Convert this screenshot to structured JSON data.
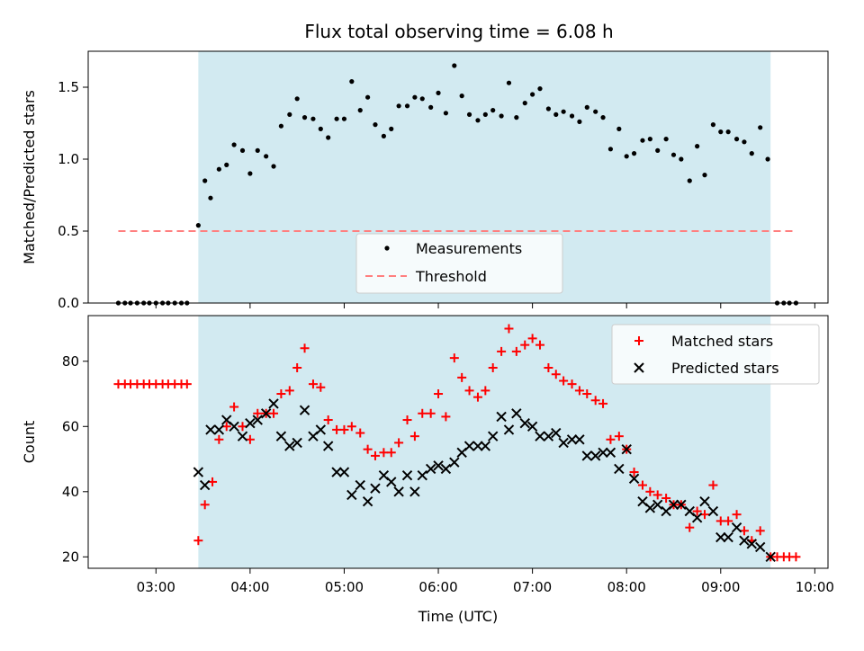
{
  "chart_data": {
    "title": "Flux total observing time = 6.08 h",
    "xlabel": "Time (UTC)",
    "x_ticks": [
      "03:00",
      "04:00",
      "05:00",
      "06:00",
      "07:00",
      "08:00",
      "09:00",
      "10:00"
    ],
    "x_tick_hours": [
      3,
      4,
      5,
      6,
      7,
      8,
      9,
      10
    ],
    "xlim_hours": [
      2.28,
      10.14
    ],
    "observing_window_hours": [
      3.45,
      9.53
    ],
    "observing_window_color": "#add8e6",
    "panels": [
      {
        "type": "scatter",
        "ylabel": "Matched/Predicted stars",
        "ylim": [
          0,
          1.75
        ],
        "y_ticks": [
          0.0,
          0.5,
          1.0,
          1.5
        ],
        "legend_position": "lower-center",
        "series": [
          {
            "name": "Measurements",
            "marker": "dot",
            "color": "#000000",
            "x": [
              2.6,
              2.67,
              2.73,
              2.8,
              2.87,
              2.93,
              3.0,
              3.07,
              3.13,
              3.2,
              3.27,
              3.33,
              3.45,
              3.52,
              3.58,
              3.67,
              3.75,
              3.83,
              3.92,
              4.0,
              4.08,
              4.17,
              4.25,
              4.33,
              4.42,
              4.5,
              4.58,
              4.67,
              4.75,
              4.83,
              4.92,
              5.0,
              5.08,
              5.17,
              5.25,
              5.33,
              5.42,
              5.5,
              5.58,
              5.67,
              5.75,
              5.83,
              5.92,
              6.0,
              6.08,
              6.17,
              6.25,
              6.33,
              6.42,
              6.5,
              6.58,
              6.67,
              6.75,
              6.83,
              6.92,
              7.0,
              7.08,
              7.17,
              7.25,
              7.33,
              7.42,
              7.5,
              7.58,
              7.67,
              7.75,
              7.83,
              7.92,
              8.0,
              8.08,
              8.17,
              8.25,
              8.33,
              8.42,
              8.5,
              8.58,
              8.67,
              8.75,
              8.83,
              8.92,
              9.0,
              9.08,
              9.17,
              9.25,
              9.33,
              9.42,
              9.5,
              9.6,
              9.67,
              9.73,
              9.8
            ],
            "y": [
              0,
              0,
              0,
              0,
              0,
              0,
              0,
              0,
              0,
              0,
              0,
              0,
              0.54,
              0.85,
              0.73,
              0.93,
              0.96,
              1.1,
              1.06,
              0.9,
              1.06,
              1.02,
              0.95,
              1.23,
              1.31,
              1.42,
              1.29,
              1.28,
              1.21,
              1.15,
              1.28,
              1.28,
              1.54,
              1.34,
              1.43,
              1.24,
              1.16,
              1.21,
              1.37,
              1.37,
              1.43,
              1.42,
              1.36,
              1.46,
              1.32,
              1.65,
              1.44,
              1.31,
              1.27,
              1.31,
              1.34,
              1.3,
              1.53,
              1.29,
              1.39,
              1.45,
              1.49,
              1.35,
              1.31,
              1.33,
              1.3,
              1.26,
              1.36,
              1.33,
              1.29,
              1.07,
              1.21,
              1.02,
              1.04,
              1.13,
              1.14,
              1.06,
              1.14,
              1.03,
              1.0,
              0.85,
              1.09,
              0.89,
              1.24,
              1.19,
              1.19,
              1.14,
              1.12,
              1.04,
              1.22,
              1.0,
              0,
              0,
              0,
              0
            ]
          },
          {
            "name": "Threshold",
            "marker": "dashed-line",
            "color": "#ff7f7f",
            "x": [
              2.6,
              9.8
            ],
            "y": [
              0.5,
              0.5
            ]
          }
        ]
      },
      {
        "type": "scatter",
        "ylabel": "Count",
        "ylim": [
          16.5,
          94
        ],
        "y_ticks": [
          20,
          40,
          60,
          80
        ],
        "legend_position": "upper-right",
        "series": [
          {
            "name": "Matched stars",
            "marker": "plus",
            "color": "#ff0000",
            "x": [
              2.6,
              2.67,
              2.73,
              2.8,
              2.87,
              2.93,
              3.0,
              3.07,
              3.13,
              3.2,
              3.27,
              3.33,
              3.45,
              3.52,
              3.6,
              3.67,
              3.75,
              3.83,
              3.92,
              4.0,
              4.08,
              4.17,
              4.25,
              4.33,
              4.42,
              4.5,
              4.58,
              4.67,
              4.75,
              4.83,
              4.92,
              5.0,
              5.08,
              5.17,
              5.25,
              5.33,
              5.42,
              5.5,
              5.58,
              5.67,
              5.75,
              5.83,
              5.92,
              6.0,
              6.08,
              6.17,
              6.25,
              6.33,
              6.42,
              6.5,
              6.58,
              6.67,
              6.75,
              6.83,
              6.92,
              7.0,
              7.08,
              7.17,
              7.25,
              7.33,
              7.42,
              7.5,
              7.58,
              7.67,
              7.75,
              7.83,
              7.92,
              8.0,
              8.08,
              8.17,
              8.25,
              8.33,
              8.42,
              8.5,
              8.58,
              8.67,
              8.75,
              8.83,
              8.92,
              9.0,
              9.08,
              9.17,
              9.25,
              9.33,
              9.42,
              9.53,
              9.6,
              9.67,
              9.73,
              9.8
            ],
            "y": [
              73,
              73,
              73,
              73,
              73,
              73,
              73,
              73,
              73,
              73,
              73,
              73,
              25,
              36,
              43,
              56,
              60,
              66,
              60,
              56,
              64,
              64,
              64,
              70,
              71,
              78,
              84,
              73,
              72,
              62,
              59,
              59,
              60,
              58,
              53,
              51,
              52,
              52,
              55,
              62,
              57,
              64,
              64,
              70,
              63,
              81,
              75,
              71,
              69,
              71,
              78,
              83,
              90,
              83,
              85,
              87,
              85,
              78,
              76,
              74,
              73,
              71,
              70,
              68,
              67,
              56,
              57,
              53,
              46,
              42,
              40,
              39,
              38,
              36,
              36,
              29,
              34,
              33,
              42,
              31,
              31,
              33,
              28,
              25,
              28,
              20,
              20,
              20,
              20,
              20
            ]
          },
          {
            "name": "Predicted stars",
            "marker": "x",
            "color": "#000000",
            "x": [
              3.45,
              3.52,
              3.58,
              3.67,
              3.75,
              3.83,
              3.92,
              4.0,
              4.08,
              4.17,
              4.25,
              4.33,
              4.42,
              4.5,
              4.58,
              4.67,
              4.75,
              4.83,
              4.92,
              5.0,
              5.08,
              5.17,
              5.25,
              5.33,
              5.42,
              5.5,
              5.58,
              5.67,
              5.75,
              5.83,
              5.92,
              6.0,
              6.08,
              6.17,
              6.25,
              6.33,
              6.42,
              6.5,
              6.58,
              6.67,
              6.75,
              6.83,
              6.92,
              7.0,
              7.08,
              7.17,
              7.25,
              7.33,
              7.42,
              7.5,
              7.58,
              7.67,
              7.75,
              7.83,
              7.92,
              8.0,
              8.08,
              8.17,
              8.25,
              8.33,
              8.42,
              8.5,
              8.58,
              8.67,
              8.75,
              8.83,
              8.92,
              9.0,
              9.08,
              9.17,
              9.25,
              9.33,
              9.42,
              9.53
            ],
            "y": [
              46,
              42,
              59,
              59,
              62,
              60,
              57,
              61,
              62,
              64,
              67,
              57,
              54,
              55,
              65,
              57,
              59,
              54,
              46,
              46,
              39,
              42,
              37,
              41,
              45,
              43,
              40,
              45,
              40,
              45,
              47,
              48,
              47,
              49,
              52,
              54,
              54,
              54,
              57,
              63,
              59,
              64,
              61,
              60,
              57,
              57,
              58,
              55,
              56,
              56,
              51,
              51,
              52,
              52,
              47,
              53,
              44,
              37,
              35,
              36,
              34,
              36,
              36,
              34,
              32,
              37,
              34,
              26,
              26,
              29,
              25,
              24,
              23,
              20
            ]
          }
        ]
      }
    ]
  }
}
